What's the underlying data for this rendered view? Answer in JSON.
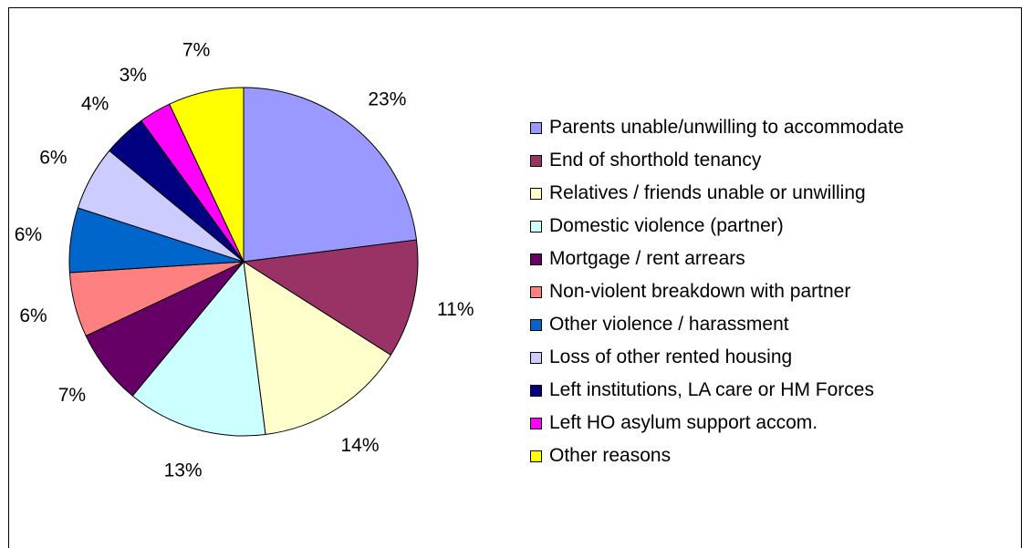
{
  "colors": {
    "border": "#000000",
    "background": "#ffffff"
  },
  "chart_data": {
    "type": "pie",
    "title": "",
    "start_angle_deg": 0,
    "direction": "clockwise",
    "legend_position": "right",
    "slices": [
      {
        "label": "Parents unable/unwilling to accommodate",
        "value": 23,
        "value_label": "23%",
        "color": "#9999ff"
      },
      {
        "label": "End of shorthold tenancy",
        "value": 11,
        "value_label": "11%",
        "color": "#993366"
      },
      {
        "label": "Relatives / friends unable or unwilling",
        "value": 14,
        "value_label": "14%",
        "color": "#ffffcc"
      },
      {
        "label": "Domestic violence (partner)",
        "value": 13,
        "value_label": "13%",
        "color": "#ccffff"
      },
      {
        "label": "Mortgage / rent arrears",
        "value": 7,
        "value_label": "7%",
        "color": "#660066"
      },
      {
        "label": "Non-violent breakdown with partner",
        "value": 6,
        "value_label": "6%",
        "color": "#ff8080"
      },
      {
        "label": "Other violence / harassment",
        "value": 6,
        "value_label": "6%",
        "color": "#0066cc"
      },
      {
        "label": "Loss of other rented housing",
        "value": 6,
        "value_label": "6%",
        "color": "#ccccff"
      },
      {
        "label": "Left institutions, LA care or HM Forces",
        "value": 4,
        "value_label": "4%",
        "color": "#000080"
      },
      {
        "label": "Left HO asylum support accom.",
        "value": 3,
        "value_label": "3%",
        "color": "#ff00ff"
      },
      {
        "label": "Other reasons",
        "value": 7,
        "value_label": "7%",
        "color": "#ffff00"
      }
    ]
  }
}
